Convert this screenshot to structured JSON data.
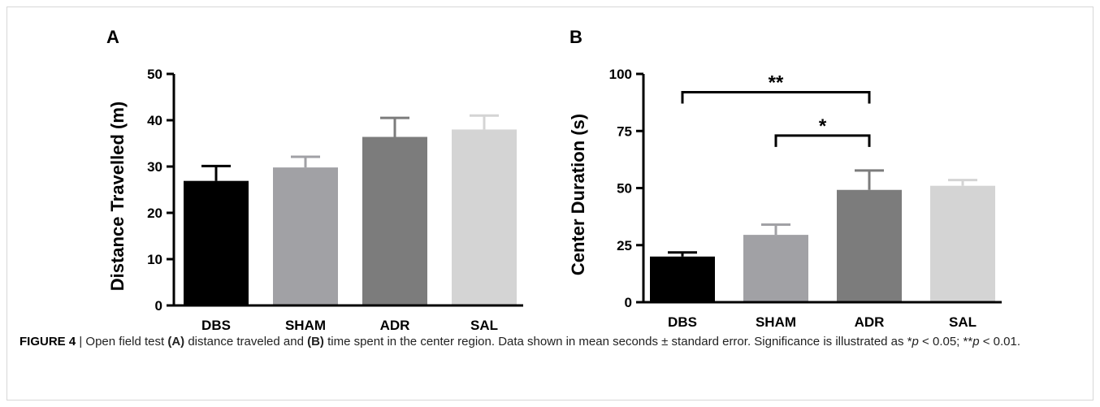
{
  "chart_data": [
    {
      "type": "bar",
      "panel": "A",
      "categories": [
        "DBS",
        "SHAM",
        "ADR",
        "SAL"
      ],
      "values": [
        26.9,
        29.8,
        36.4,
        38.0
      ],
      "errors": [
        3.2,
        2.3,
        4.1,
        3.0
      ],
      "colors": [
        "#000000",
        "#a1a1a5",
        "#7c7c7c",
        "#d4d4d4"
      ],
      "ylabel": "Distance Travelled (m)",
      "xlabel": "",
      "ylim": [
        0,
        50
      ],
      "yticks": [
        0,
        10,
        20,
        30,
        40,
        50
      ],
      "grid": false,
      "significance": []
    },
    {
      "type": "bar",
      "panel": "B",
      "categories": [
        "DBS",
        "SHAM",
        "ADR",
        "SAL"
      ],
      "values": [
        20.0,
        29.5,
        49.2,
        51.0
      ],
      "errors": [
        1.8,
        4.5,
        8.5,
        2.5
      ],
      "colors": [
        "#000000",
        "#a1a1a5",
        "#7c7c7c",
        "#d4d4d4"
      ],
      "ylabel": "Center Duration (s)",
      "xlabel": "",
      "ylim": [
        0,
        100
      ],
      "yticks": [
        0,
        25,
        50,
        75,
        100
      ],
      "grid": false,
      "significance": [
        {
          "from": "DBS",
          "to": "ADR",
          "label": "**",
          "level": 92
        },
        {
          "from": "SHAM",
          "to": "ADR",
          "label": "*",
          "level": 73
        }
      ]
    }
  ],
  "caption": {
    "figure_label": "FIGURE 4",
    "separator": " | ",
    "text_1": "Open field test ",
    "ref_a": "(A)",
    "text_2": " distance traveled and ",
    "ref_b": "(B)",
    "text_3": " time spent in the center region. Data shown in mean seconds ± standard error. Significance is illustrated as *",
    "p1": "p",
    "text_4": " < 0.05; **",
    "p2": "p",
    "text_5": " < 0.01."
  }
}
